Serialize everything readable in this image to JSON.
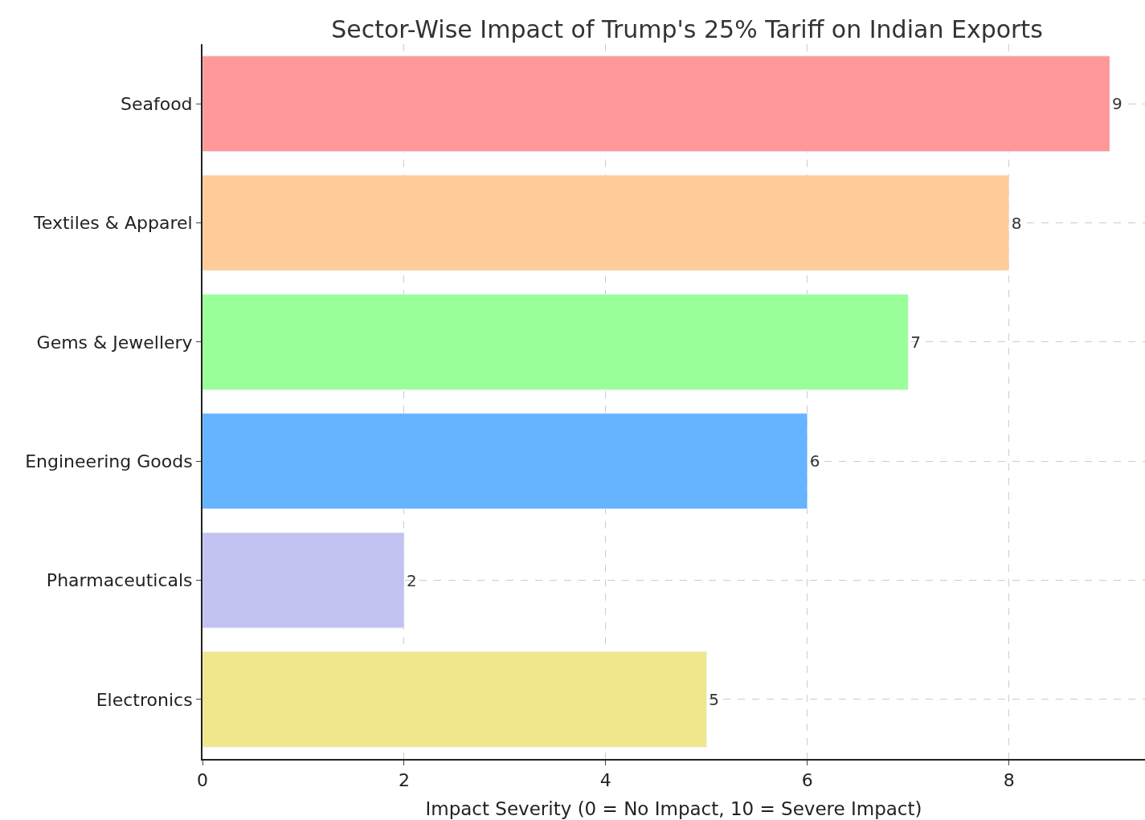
{
  "chart_data": {
    "type": "bar",
    "orientation": "horizontal",
    "title": "Sector-Wise Impact of Trump's 25% Tariff on Indian Exports",
    "xlabel": "Impact Severity (0 = No Impact, 10 = Severe Impact)",
    "categories": [
      "Seafood",
      "Textiles & Apparel",
      "Gems & Jewellery",
      "Engineering Goods",
      "Pharmaceuticals",
      "Electronics"
    ],
    "values": [
      9,
      8,
      7,
      6,
      2,
      5
    ],
    "colors": [
      "#ff9999",
      "#ffcc99",
      "#99ff99",
      "#66b3ff",
      "#c2c2f0",
      "#f0e68c"
    ],
    "xlim": [
      0,
      9.35
    ],
    "xticks": [
      0,
      2,
      4,
      6,
      8
    ],
    "grid": true,
    "data_labels": true
  }
}
